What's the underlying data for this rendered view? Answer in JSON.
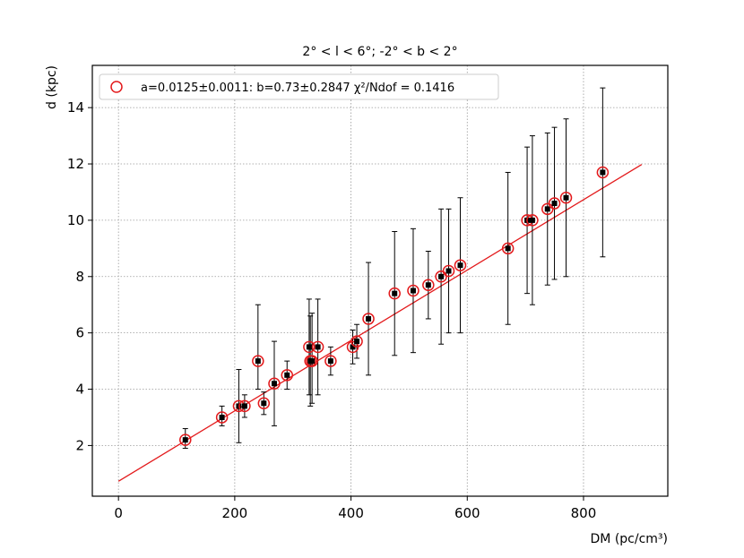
{
  "chart_data": {
    "type": "scatter",
    "title": "2° < l < 6°; -2° < b < 2°",
    "xlabel": "DM (pc/cm³)",
    "ylabel": "d (kpc)",
    "xlim": [
      -45,
      945
    ],
    "ylim": [
      0.2,
      15.5
    ],
    "xticks": [
      0,
      200,
      400,
      600,
      800
    ],
    "yticks": [
      2,
      4,
      6,
      8,
      10,
      12,
      14
    ],
    "grid": true,
    "legend": {
      "placement": "top-left",
      "label": "a=0.0125±0.0011: b=0.73±0.2847 χ²/Ndof = 0.1416"
    },
    "fit": {
      "a": 0.0125,
      "b": 0.73,
      "x_range": [
        0,
        900
      ]
    },
    "colors": {
      "fit_line": "#e31a1c",
      "marker_ring": "#e31a1c",
      "point": "#000000",
      "errorbar": "#000000",
      "grid": "#999999"
    },
    "points": [
      {
        "x": 115,
        "y": 2.2,
        "ylo": 1.9,
        "yhi": 2.6
      },
      {
        "x": 178,
        "y": 3.0,
        "ylo": 2.7,
        "yhi": 3.4
      },
      {
        "x": 207,
        "y": 3.4,
        "ylo": 2.1,
        "yhi": 4.7
      },
      {
        "x": 217,
        "y": 3.4,
        "ylo": 3.0,
        "yhi": 3.8
      },
      {
        "x": 240,
        "y": 5.0,
        "ylo": 4.0,
        "yhi": 7.0
      },
      {
        "x": 250,
        "y": 3.5,
        "ylo": 3.1,
        "yhi": 3.9
      },
      {
        "x": 268,
        "y": 4.2,
        "ylo": 2.7,
        "yhi": 5.7
      },
      {
        "x": 290,
        "y": 4.5,
        "ylo": 4.0,
        "yhi": 5.0
      },
      {
        "x": 328,
        "y": 5.5,
        "ylo": 3.8,
        "yhi": 7.2
      },
      {
        "x": 330,
        "y": 5.0,
        "ylo": 3.4,
        "yhi": 6.6
      },
      {
        "x": 333,
        "y": 5.0,
        "ylo": 3.5,
        "yhi": 6.7
      },
      {
        "x": 343,
        "y": 5.5,
        "ylo": 3.8,
        "yhi": 7.2
      },
      {
        "x": 365,
        "y": 5.0,
        "ylo": 4.5,
        "yhi": 5.5
      },
      {
        "x": 403,
        "y": 5.5,
        "ylo": 4.9,
        "yhi": 6.1
      },
      {
        "x": 410,
        "y": 5.7,
        "ylo": 5.1,
        "yhi": 6.3
      },
      {
        "x": 430,
        "y": 6.5,
        "ylo": 4.5,
        "yhi": 8.5
      },
      {
        "x": 475,
        "y": 7.4,
        "ylo": 5.2,
        "yhi": 9.6
      },
      {
        "x": 507,
        "y": 7.5,
        "ylo": 5.3,
        "yhi": 9.7
      },
      {
        "x": 533,
        "y": 7.7,
        "ylo": 6.5,
        "yhi": 8.9
      },
      {
        "x": 555,
        "y": 8.0,
        "ylo": 5.6,
        "yhi": 10.4
      },
      {
        "x": 568,
        "y": 8.2,
        "ylo": 6.0,
        "yhi": 10.4
      },
      {
        "x": 588,
        "y": 8.4,
        "ylo": 6.0,
        "yhi": 10.8
      },
      {
        "x": 670,
        "y": 9.0,
        "ylo": 6.3,
        "yhi": 11.7
      },
      {
        "x": 703,
        "y": 10.0,
        "ylo": 7.4,
        "yhi": 12.6
      },
      {
        "x": 712,
        "y": 10.0,
        "ylo": 7.0,
        "yhi": 13.0
      },
      {
        "x": 738,
        "y": 10.4,
        "ylo": 7.7,
        "yhi": 13.1
      },
      {
        "x": 750,
        "y": 10.6,
        "ylo": 7.9,
        "yhi": 13.3
      },
      {
        "x": 770,
        "y": 10.8,
        "ylo": 8.0,
        "yhi": 13.6
      },
      {
        "x": 833,
        "y": 11.7,
        "ylo": 8.7,
        "yhi": 14.7
      }
    ]
  }
}
